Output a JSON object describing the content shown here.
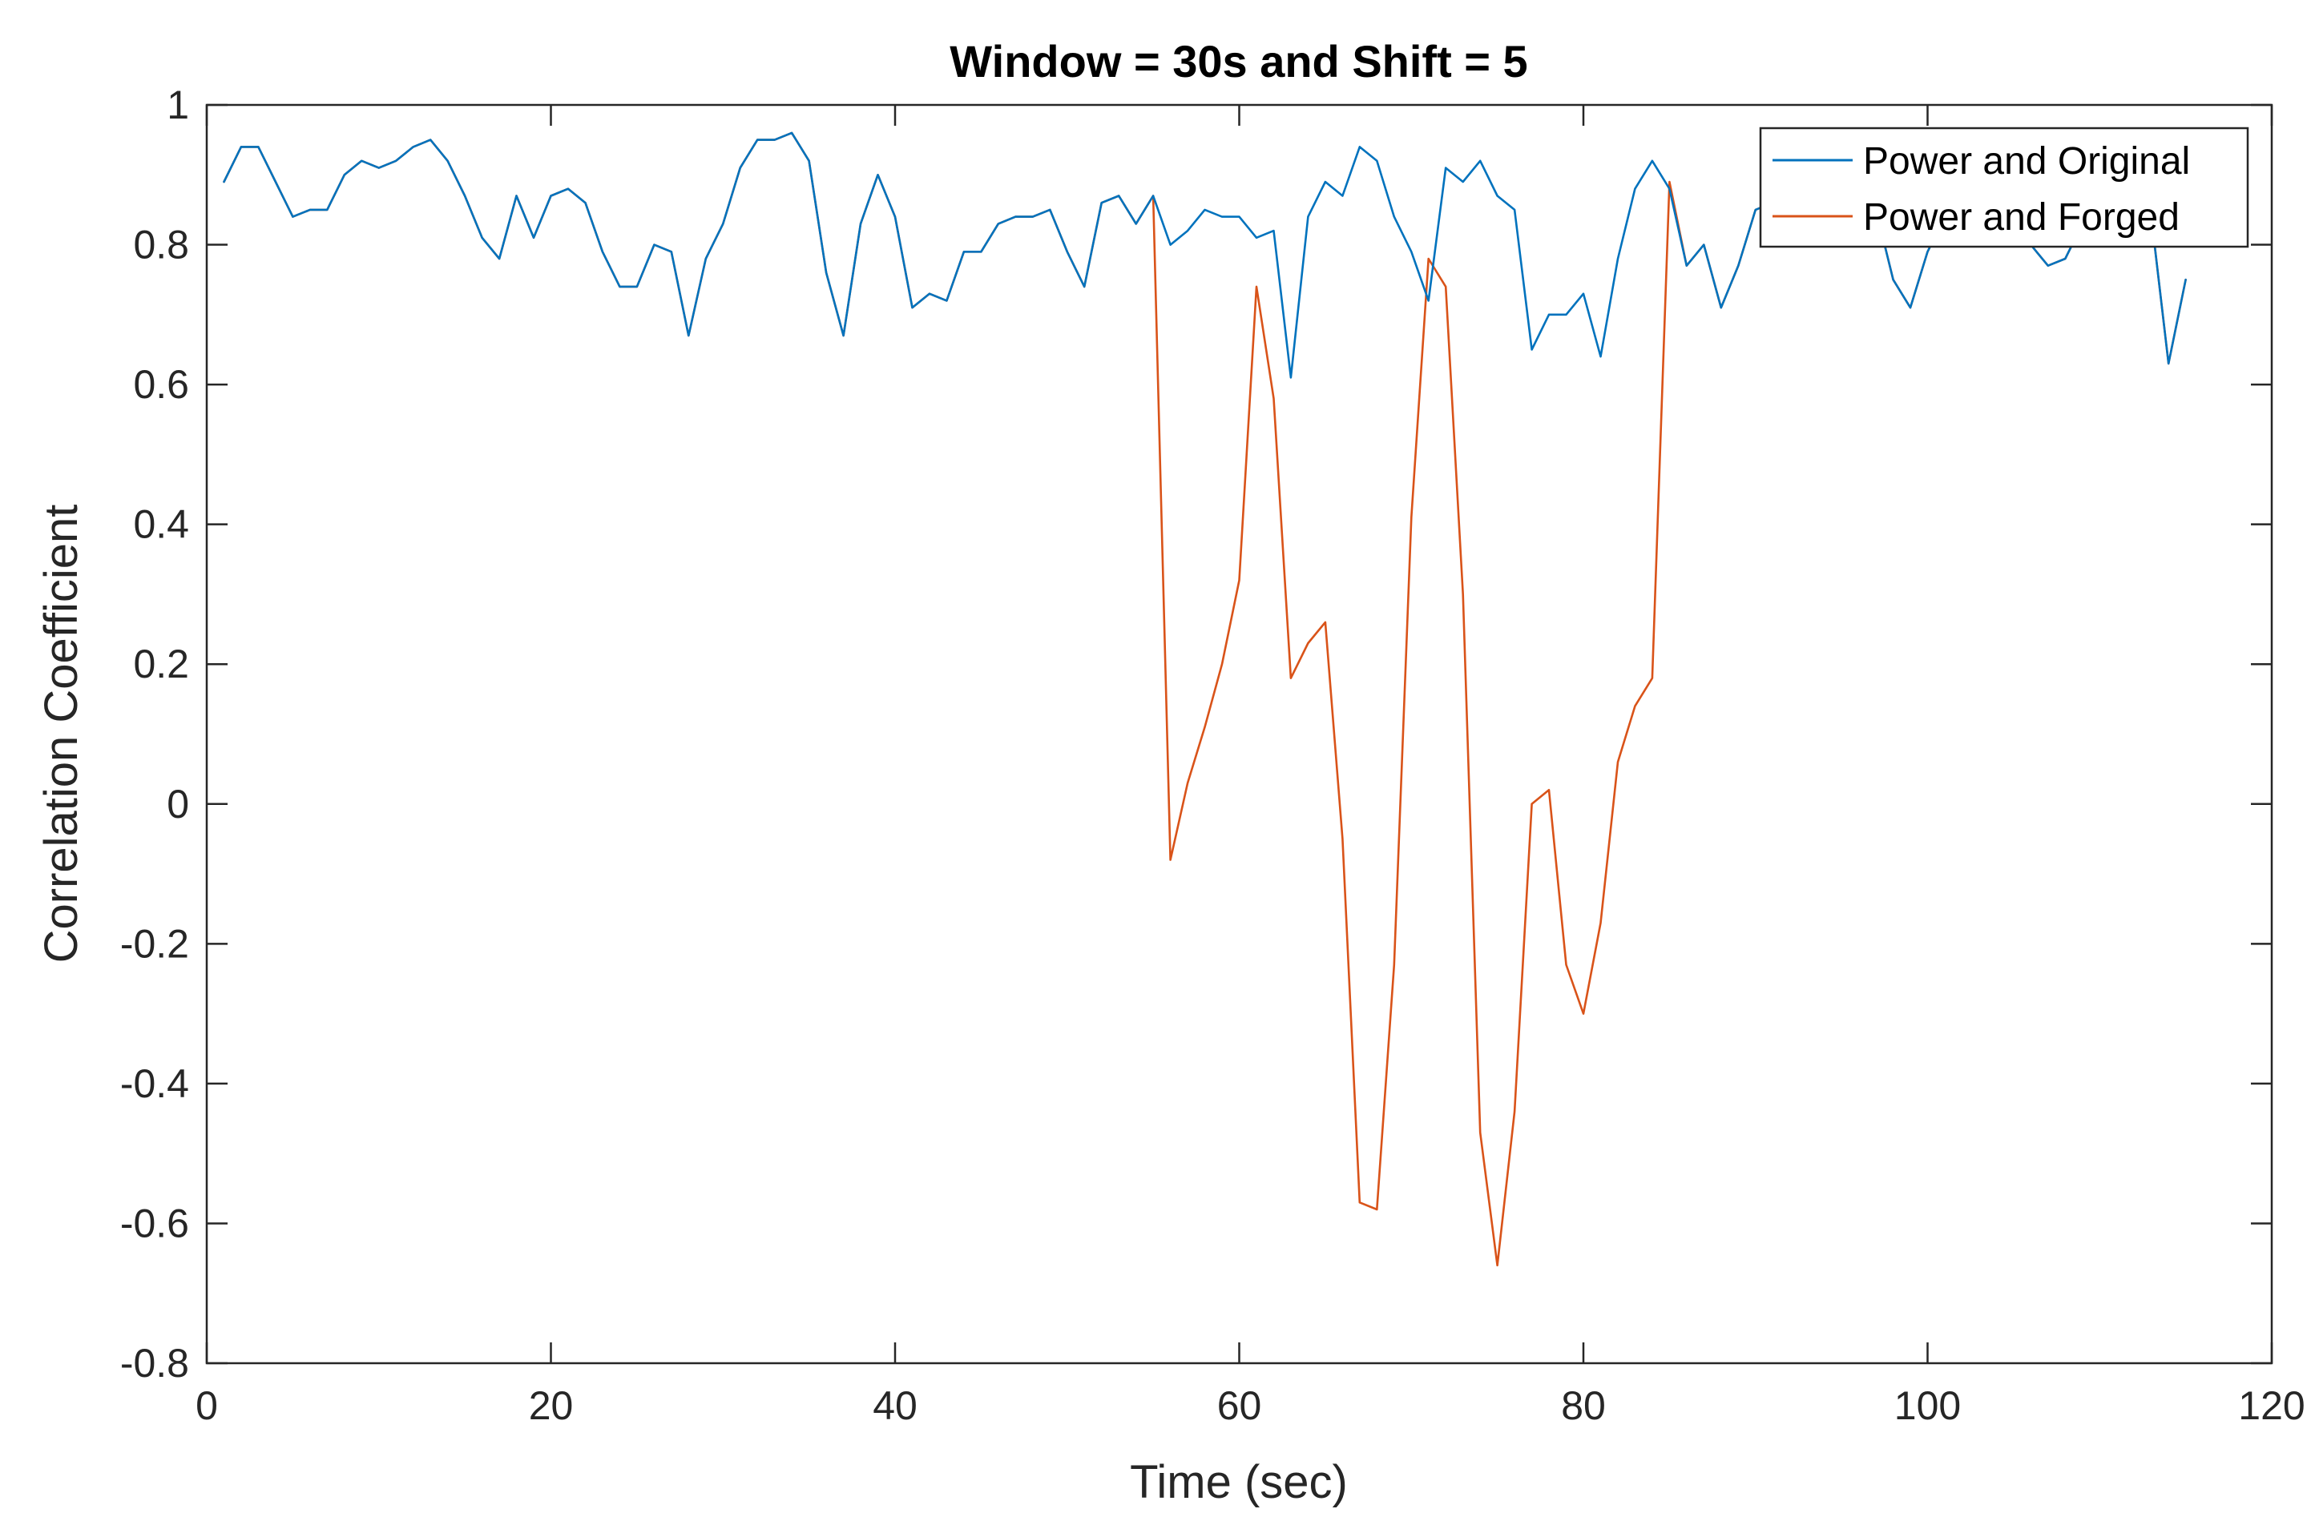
{
  "chart_data": {
    "type": "line",
    "title": "Window = 30s and Shift = 5",
    "xlabel": "Time (sec)",
    "ylabel": "Correlation Coefficient",
    "xlim": [
      0,
      120
    ],
    "ylim": [
      -0.8,
      1
    ],
    "xticks": [
      0,
      20,
      40,
      60,
      80,
      100,
      120
    ],
    "yticks": [
      -0.8,
      -0.6,
      -0.4,
      -0.2,
      0,
      0.2,
      0.4,
      0.6,
      0.8,
      1
    ],
    "grid": false,
    "legend_position": "top-right",
    "series": [
      {
        "name": "Power and Original",
        "color": "#0072BD",
        "x": [
          1,
          2,
          3,
          4,
          5,
          6,
          7,
          8,
          9,
          10,
          11,
          12,
          13,
          14,
          15,
          16,
          17,
          18,
          19,
          20,
          21,
          22,
          23,
          24,
          25,
          26,
          27,
          28,
          29,
          30,
          31,
          32,
          33,
          34,
          35,
          36,
          37,
          38,
          39,
          40,
          41,
          42,
          43,
          44,
          45,
          46,
          47,
          48,
          49,
          50,
          51,
          52,
          53,
          54,
          55,
          56,
          57,
          58,
          59,
          60,
          61,
          62,
          63,
          64,
          65,
          66,
          67,
          68,
          69,
          70,
          71,
          72,
          73,
          74,
          75,
          76,
          77,
          78,
          79,
          80,
          81,
          82,
          83,
          84,
          85,
          86,
          87,
          88,
          89,
          90,
          91,
          92,
          93,
          94,
          95,
          96,
          97,
          98,
          99,
          100,
          101,
          102,
          103,
          104,
          105,
          106,
          107,
          108,
          109,
          110,
          111,
          112,
          113,
          114,
          115
        ],
        "y": [
          0.89,
          0.94,
          0.94,
          0.89,
          0.84,
          0.85,
          0.85,
          0.9,
          0.92,
          0.91,
          0.92,
          0.94,
          0.95,
          0.92,
          0.87,
          0.81,
          0.78,
          0.87,
          0.81,
          0.87,
          0.88,
          0.86,
          0.79,
          0.74,
          0.74,
          0.8,
          0.79,
          0.67,
          0.78,
          0.83,
          0.91,
          0.95,
          0.95,
          0.96,
          0.92,
          0.76,
          0.67,
          0.83,
          0.9,
          0.84,
          0.71,
          0.73,
          0.72,
          0.79,
          0.79,
          0.83,
          0.84,
          0.84,
          0.85,
          0.79,
          0.74,
          0.86,
          0.87,
          0.83,
          0.87,
          0.8,
          0.82,
          0.85,
          0.84,
          0.84,
          0.81,
          0.82,
          0.61,
          0.84,
          0.89,
          0.87,
          0.94,
          0.92,
          0.84,
          0.79,
          0.72,
          0.91,
          0.89,
          0.92,
          0.87,
          0.85,
          0.65,
          0.7,
          0.7,
          0.73,
          0.64,
          0.78,
          0.88,
          0.92,
          0.88,
          0.77,
          0.8,
          0.71,
          0.77,
          0.85,
          0.86,
          0.88,
          0.84,
          0.83,
          0.85,
          0.87,
          0.85,
          0.75,
          0.71,
          0.79,
          0.84,
          0.86,
          0.87,
          0.83,
          0.85,
          0.8,
          0.77,
          0.78,
          0.83,
          0.86,
          0.87,
          0.85,
          0.84,
          0.63,
          0.75
        ]
      },
      {
        "name": "Power and Forged",
        "color": "#D95319",
        "x": [
          1,
          2,
          3,
          4,
          5,
          6,
          7,
          8,
          9,
          10,
          11,
          12,
          13,
          14,
          15,
          16,
          17,
          18,
          19,
          20,
          21,
          22,
          23,
          24,
          25,
          26,
          27,
          28,
          29,
          30,
          31,
          32,
          33,
          34,
          35,
          36,
          37,
          38,
          39,
          40,
          41,
          42,
          43,
          44,
          45,
          46,
          47,
          48,
          49,
          50,
          51,
          52,
          53,
          54,
          55,
          56,
          57,
          58,
          59,
          60,
          61,
          62,
          63,
          64,
          65,
          66,
          67,
          68,
          69,
          70,
          71,
          72,
          73,
          74,
          75,
          76,
          77,
          78,
          79,
          80,
          81,
          82,
          83,
          84,
          85,
          86,
          87,
          88,
          89,
          90,
          91,
          92,
          93,
          94,
          95,
          96,
          97,
          98,
          99,
          100,
          101,
          102,
          103,
          104,
          105,
          106,
          107,
          108,
          109,
          110,
          111,
          112,
          113,
          114,
          115
        ],
        "y": [
          0.89,
          0.94,
          0.94,
          0.89,
          0.84,
          0.85,
          0.85,
          0.9,
          0.92,
          0.91,
          0.92,
          0.94,
          0.95,
          0.92,
          0.87,
          0.81,
          0.78,
          0.87,
          0.81,
          0.87,
          0.88,
          0.86,
          0.79,
          0.74,
          0.74,
          0.8,
          0.79,
          0.67,
          0.78,
          0.83,
          0.91,
          0.95,
          0.95,
          0.96,
          0.92,
          0.76,
          0.67,
          0.83,
          0.9,
          0.84,
          0.71,
          0.73,
          0.72,
          0.79,
          0.79,
          0.83,
          0.84,
          0.84,
          0.85,
          0.79,
          0.74,
          0.86,
          0.87,
          0.83,
          0.87,
          -0.08,
          0.03,
          0.11,
          0.2,
          0.32,
          0.74,
          0.58,
          0.18,
          0.23,
          0.26,
          -0.05,
          -0.57,
          -0.58,
          -0.23,
          0.41,
          0.78,
          0.74,
          0.3,
          -0.47,
          -0.66,
          -0.44,
          0.0,
          0.02,
          -0.23,
          -0.3,
          -0.17,
          0.06,
          0.14,
          0.18,
          0.89,
          0.77,
          0.8,
          0.71,
          0.77,
          0.85,
          0.86,
          0.88,
          0.84,
          0.83,
          0.85,
          0.87,
          0.85,
          0.75,
          0.71,
          0.79,
          0.84,
          0.86,
          0.87,
          0.83,
          0.85,
          0.8,
          0.77,
          0.78,
          0.83,
          0.86,
          0.87,
          0.85,
          0.84,
          0.63,
          0.75
        ]
      }
    ]
  }
}
